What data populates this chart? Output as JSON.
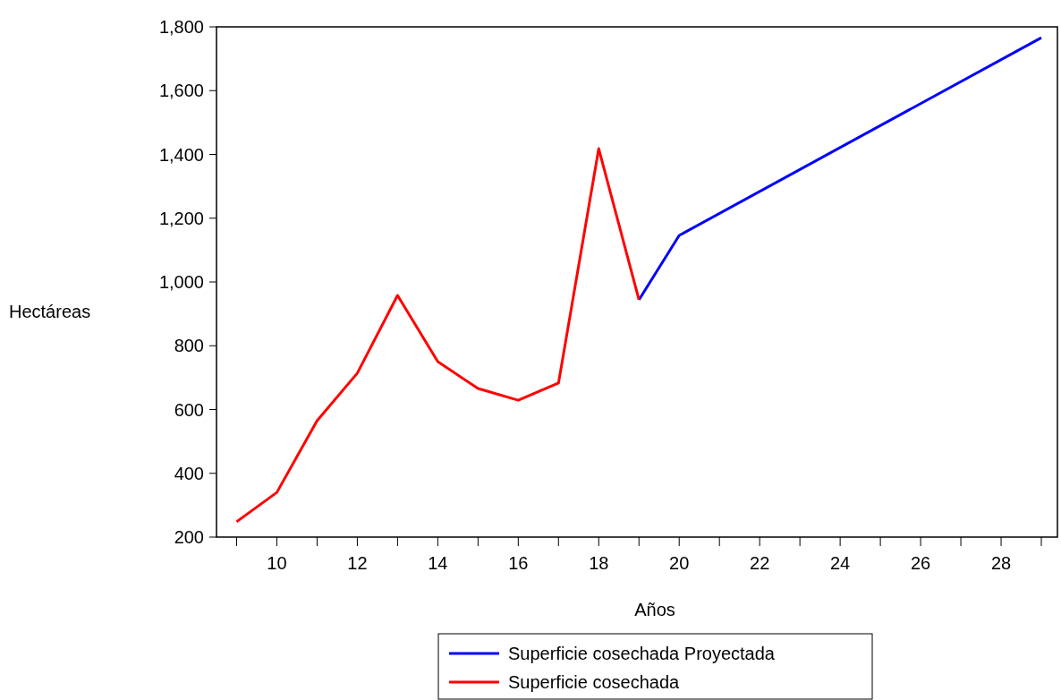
{
  "chart_data": {
    "type": "line",
    "xlabel": "Años",
    "ylabel": "Hectáreas",
    "xlim": [
      8.5,
      29.4
    ],
    "xticks": [
      {
        "value": 9,
        "label": null
      },
      10,
      {
        "value": 11,
        "label": null
      },
      12,
      {
        "value": 13,
        "label": null
      },
      14,
      {
        "value": 15,
        "label": null
      },
      16,
      {
        "value": 17,
        "label": null
      },
      18,
      {
        "value": 19,
        "label": null
      },
      20,
      {
        "value": 21,
        "label": null
      },
      22,
      {
        "value": 23,
        "label": null
      },
      24,
      {
        "value": 25,
        "label": null
      },
      26,
      {
        "value": 27,
        "label": null
      },
      28,
      {
        "value": 29,
        "label": null
      }
    ],
    "ylim": [
      200,
      1800
    ],
    "yticks": [
      {
        "value": 200,
        "label": "200"
      },
      {
        "value": 400,
        "label": "400"
      },
      {
        "value": 600,
        "label": "600"
      },
      {
        "value": 800,
        "label": "800"
      },
      {
        "value": 1000,
        "label": "1,000"
      },
      {
        "value": 1200,
        "label": "1,200"
      },
      {
        "value": 1400,
        "label": "1,400"
      },
      {
        "value": 1600,
        "label": "1,600"
      },
      {
        "value": 1800,
        "label": "1,800"
      }
    ],
    "grid": false,
    "legend": "bottom",
    "line_style": "solid",
    "marker": "none",
    "series": [
      {
        "name": "Superficie cosechada Proyectada",
        "color": "#0000ff",
        "x": [
          19,
          20,
          29
        ],
        "values": [
          944,
          1146,
          1766
        ]
      },
      {
        "name": "Superficie cosechada",
        "color": "#ff0000",
        "x": [
          9,
          10,
          11,
          12,
          13,
          14,
          15,
          16,
          17,
          18,
          19
        ],
        "values": [
          248,
          340,
          565,
          714,
          958,
          750,
          666,
          629,
          683,
          1418,
          944
        ]
      }
    ]
  }
}
